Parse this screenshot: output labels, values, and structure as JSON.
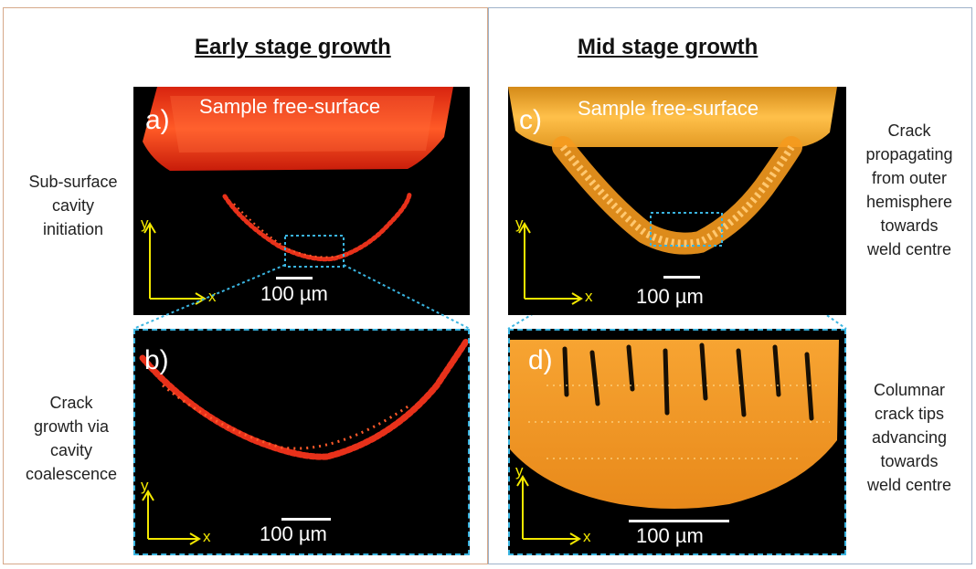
{
  "headings": {
    "left": "Early stage growth",
    "right": "Mid stage growth"
  },
  "side_labels": {
    "a": [
      "Sub-surface",
      "cavity",
      "initiation"
    ],
    "b": [
      "Crack",
      "growth via",
      "cavity",
      "coalescence"
    ],
    "c": [
      "Crack",
      "propagating",
      "from outer",
      "hemisphere",
      "towards",
      "weld centre"
    ],
    "d": [
      "Columnar",
      "crack tips",
      "advancing",
      "towards",
      "weld centre"
    ]
  },
  "panels": {
    "a": {
      "letter": "a)",
      "surface_label": "Sample free-surface",
      "scale_bar": "100 µm"
    },
    "b": {
      "letter": "b)",
      "scale_bar": "100 µm"
    },
    "c": {
      "letter": "c)",
      "surface_label": "Sample free-surface",
      "scale_bar": "100 µm"
    },
    "d": {
      "letter": "d)",
      "scale_bar": "100 µm"
    }
  },
  "axes": {
    "x": "x",
    "y": "y"
  },
  "colors": {
    "early_stage": "#e8311a",
    "mid_stage": "#f59a1e",
    "axis": "#f3e800",
    "zoom_box": "#3ab4e0"
  }
}
